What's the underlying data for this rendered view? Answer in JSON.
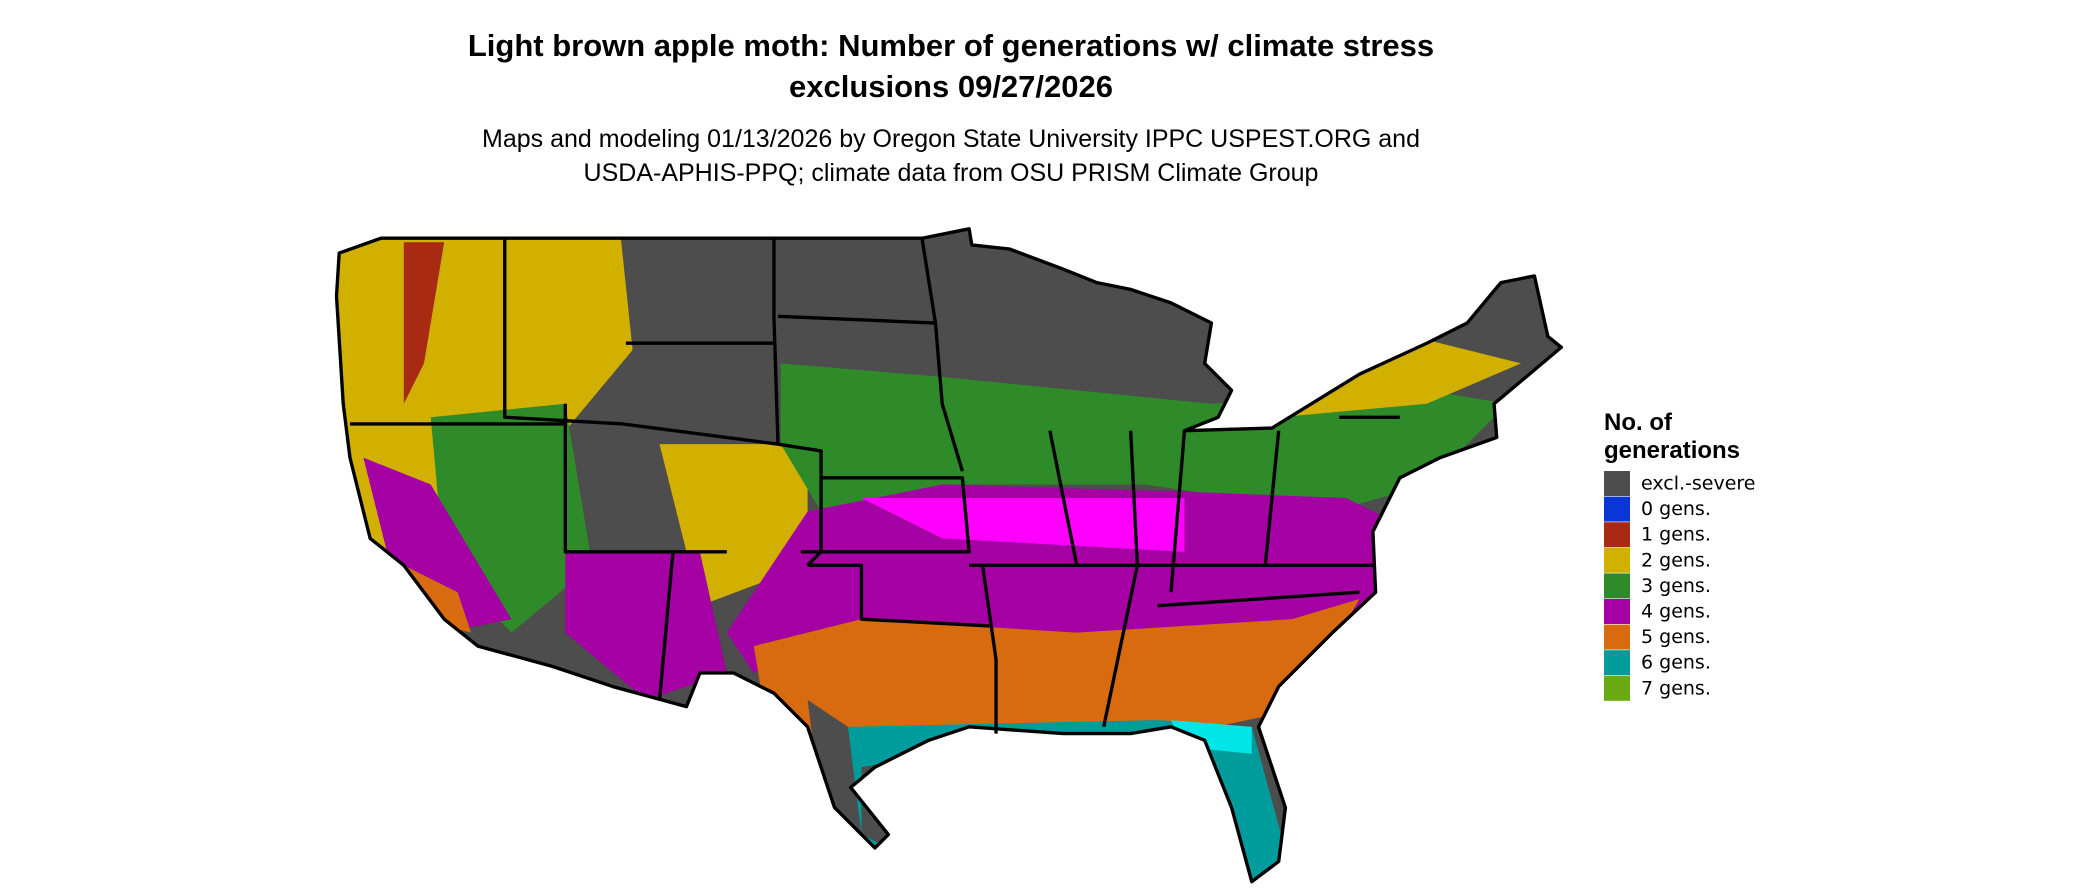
{
  "header": {
    "title": [
      "Light brown apple moth: Number of generations w/ climate stress",
      "exclusions 09/27/2026"
    ],
    "subtitle": [
      "Maps and modeling 01/13/2026 by Oregon State University IPPC USPEST.ORG and",
      "USDA-APHIS-PPQ; climate data from OSU PRISM Climate Group"
    ]
  },
  "legend": {
    "title": [
      "No. of",
      "generations"
    ],
    "items": [
      {
        "label": "excl.-severe",
        "color": "#4d4d4d"
      },
      {
        "label": "0 gens.",
        "color": "#0b36d6"
      },
      {
        "label": "1 gens.",
        "color": "#a82a12"
      },
      {
        "label": "2 gens.",
        "color": "#d2b000"
      },
      {
        "label": "3 gens.",
        "color": "#2f8a2a"
      },
      {
        "label": "4 gens.",
        "color": "#a400a4"
      },
      {
        "label": "5 gens.",
        "color": "#d86a10"
      },
      {
        "label": "6 gens.",
        "color": "#009c9c"
      },
      {
        "label": "7 gens.",
        "color": "#6aaa12"
      }
    ]
  }
}
